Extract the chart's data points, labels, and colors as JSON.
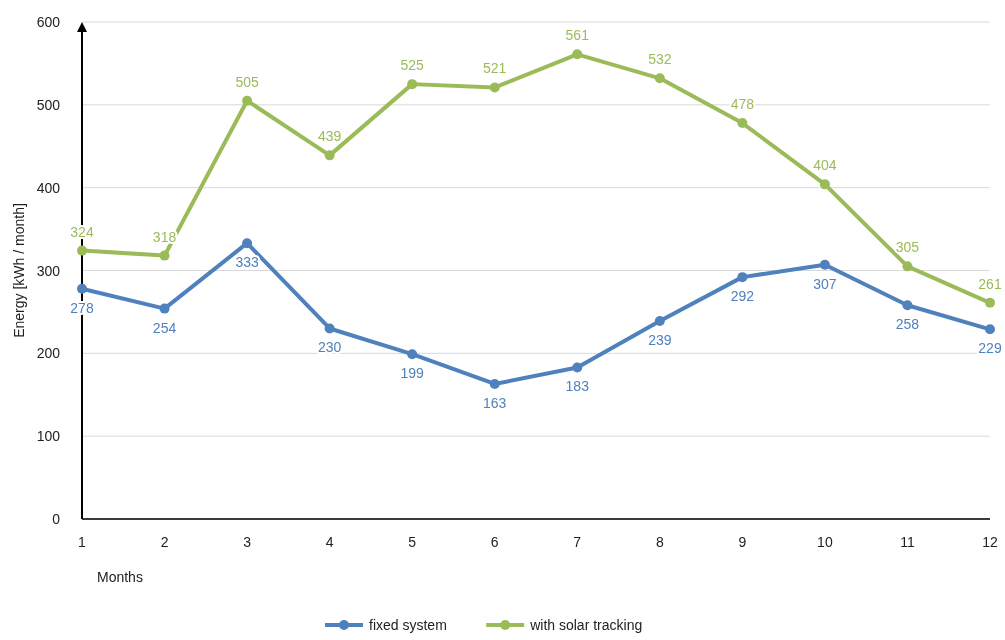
{
  "chart_data": {
    "type": "line",
    "xlabel": "Months",
    "ylabel": "Energy [kWh / month]",
    "x": [
      1,
      2,
      3,
      4,
      5,
      6,
      7,
      8,
      9,
      10,
      11,
      12
    ],
    "xlim": [
      1,
      12
    ],
    "xticks": [
      1,
      2,
      3,
      4,
      5,
      6,
      7,
      8,
      9,
      10,
      11,
      12
    ],
    "series": [
      {
        "name": "fixed system",
        "color": "#4f81bd",
        "values": [
          278,
          254,
          333,
          230,
          199,
          163,
          183,
          239,
          292,
          307,
          258,
          229
        ]
      },
      {
        "name": "with solar tracking",
        "color": "#9bbb59",
        "values": [
          324,
          318,
          505,
          439,
          525,
          521,
          561,
          532,
          478,
          404,
          305,
          261
        ]
      }
    ],
    "ylim": [
      0,
      600
    ],
    "yticks": [
      0,
      100,
      200,
      300,
      400,
      500,
      600
    ],
    "grid": "y",
    "legend": "bottom",
    "marker": "circle",
    "data_labels": true
  }
}
